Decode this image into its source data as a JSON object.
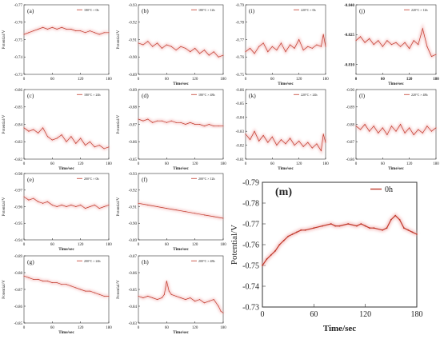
{
  "colors": {
    "line": "#c0392b",
    "glow": "#f3b5b5",
    "axis": "#333333"
  },
  "chart_data": [
    {
      "id": "a",
      "type": "line",
      "panel_label": "(a)",
      "legend": "180°C × 0h",
      "ylabel": "Potential/V",
      "xlabel": "",
      "xlim": [
        0,
        180
      ],
      "ylim": [
        -0.77,
        -0.73
      ],
      "xticks": [
        0,
        60,
        120,
        180
      ],
      "yticks": [
        -0.77,
        -0.76,
        -0.75,
        -0.74,
        -0.73
      ],
      "ytick_labels": [
        "-0.77",
        "-0.76",
        "-0.75",
        "-0.74",
        "-0.73"
      ],
      "x": [
        0,
        10,
        20,
        30,
        40,
        50,
        60,
        70,
        80,
        90,
        100,
        110,
        120,
        130,
        140,
        150,
        160,
        170,
        180
      ],
      "y": [
        -0.753,
        -0.754,
        -0.755,
        -0.756,
        -0.757,
        -0.756,
        -0.757,
        -0.756,
        -0.757,
        -0.756,
        -0.756,
        -0.755,
        -0.755,
        -0.754,
        -0.755,
        -0.754,
        -0.753,
        -0.754,
        -0.754
      ]
    },
    {
      "id": "b",
      "type": "line",
      "panel_label": "(b)",
      "legend": "180°C × 12h",
      "ylabel": "Potential/V",
      "xlabel": "Time/sec",
      "xlim": [
        0,
        180
      ],
      "ylim": [
        -0.93,
        -0.89
      ],
      "xticks": [
        0,
        60,
        120,
        180
      ],
      "yticks": [
        -0.93,
        -0.92,
        -0.91,
        -0.9,
        -0.89
      ],
      "ytick_labels": [
        "-0.93",
        "-0.92",
        "-0.91",
        "-0.90",
        "-0.89"
      ],
      "x": [
        0,
        10,
        20,
        30,
        40,
        50,
        60,
        70,
        80,
        90,
        100,
        110,
        120,
        130,
        140,
        150,
        160,
        170,
        180
      ],
      "y": [
        -0.908,
        -0.907,
        -0.909,
        -0.906,
        -0.908,
        -0.905,
        -0.907,
        -0.906,
        -0.904,
        -0.906,
        -0.905,
        -0.903,
        -0.905,
        -0.902,
        -0.904,
        -0.901,
        -0.903,
        -0.9,
        -0.901
      ]
    },
    {
      "id": "c",
      "type": "line",
      "panel_label": "(c)",
      "legend": "180°C × 24h",
      "ylabel": "Potential/V",
      "xlabel": "Time/sec",
      "xlim": [
        0,
        180
      ],
      "ylim": [
        -0.86,
        -0.82
      ],
      "xticks": [
        0,
        60,
        120,
        180
      ],
      "yticks": [
        -0.86,
        -0.85,
        -0.84,
        -0.83,
        -0.82
      ],
      "ytick_labels": [
        "-0.86",
        "-0.85",
        "-0.84",
        "-0.83",
        "-0.82"
      ],
      "x": [
        0,
        10,
        20,
        30,
        40,
        50,
        60,
        70,
        80,
        90,
        100,
        110,
        120,
        130,
        140,
        150,
        160,
        170,
        180
      ],
      "y": [
        -0.838,
        -0.836,
        -0.837,
        -0.835,
        -0.838,
        -0.833,
        -0.831,
        -0.832,
        -0.834,
        -0.83,
        -0.833,
        -0.829,
        -0.832,
        -0.828,
        -0.83,
        -0.827,
        -0.828,
        -0.826,
        -0.827
      ]
    },
    {
      "id": "d",
      "type": "line",
      "panel_label": "(d)",
      "legend": "180°C × 48h",
      "ylabel": "Potential/V",
      "xlabel": "Time/sec",
      "xlim": [
        0,
        180
      ],
      "ylim": [
        -0.89,
        -0.85
      ],
      "xticks": [
        0,
        60,
        120,
        180
      ],
      "yticks": [
        -0.89,
        -0.88,
        -0.87,
        -0.86,
        -0.85
      ],
      "ytick_labels": [
        "-0.89",
        "-0.88",
        "-0.87",
        "-0.86",
        "-0.85"
      ],
      "x": [
        0,
        10,
        20,
        30,
        40,
        50,
        60,
        70,
        80,
        90,
        100,
        110,
        120,
        130,
        140,
        150,
        160,
        170,
        180
      ],
      "y": [
        -0.873,
        -0.872,
        -0.873,
        -0.871,
        -0.872,
        -0.872,
        -0.871,
        -0.872,
        -0.871,
        -0.871,
        -0.87,
        -0.871,
        -0.87,
        -0.87,
        -0.869,
        -0.87,
        -0.869,
        -0.869,
        -0.869
      ]
    },
    {
      "id": "e",
      "type": "line",
      "panel_label": "(e)",
      "legend": "200°C × 0h",
      "ylabel": "Potential/V",
      "xlabel": "Time/sec",
      "xlim": [
        0,
        180
      ],
      "ylim": [
        -0.98,
        -0.94
      ],
      "xticks": [
        0,
        60,
        120,
        180
      ],
      "yticks": [
        -0.98,
        -0.97,
        -0.96,
        -0.95,
        -0.94
      ],
      "ytick_labels": [
        "-0.98",
        "-0.97",
        "-0.96",
        "-0.95",
        "-0.94"
      ],
      "x": [
        0,
        10,
        20,
        30,
        40,
        50,
        60,
        70,
        80,
        90,
        100,
        110,
        120,
        130,
        140,
        150,
        160,
        170,
        180
      ],
      "y": [
        -0.966,
        -0.964,
        -0.965,
        -0.963,
        -0.962,
        -0.963,
        -0.961,
        -0.96,
        -0.961,
        -0.96,
        -0.961,
        -0.96,
        -0.961,
        -0.959,
        -0.96,
        -0.961,
        -0.959,
        -0.96,
        -0.961
      ]
    },
    {
      "id": "f",
      "type": "line",
      "panel_label": "(f)",
      "legend": "200°C × 12h",
      "ylabel": "Potential/V",
      "xlabel": "Time/sec",
      "xlim": [
        0,
        180
      ],
      "ylim": [
        -0.93,
        -0.89
      ],
      "xticks": [
        0,
        60,
        120,
        180
      ],
      "yticks": [
        -0.93,
        -0.92,
        -0.91,
        -0.9,
        -0.89
      ],
      "ytick_labels": [
        "-0.93",
        "-0.92",
        "-0.91",
        "-0.90",
        "-0.89"
      ],
      "x": [
        0,
        20,
        40,
        60,
        80,
        100,
        120,
        140,
        160,
        180
      ],
      "y": [
        -0.912,
        -0.911,
        -0.91,
        -0.909,
        -0.908,
        -0.907,
        -0.906,
        -0.905,
        -0.904,
        -0.903
      ]
    },
    {
      "id": "g",
      "type": "line",
      "panel_label": "(g)",
      "legend": "200°C × 24h",
      "ylabel": "Potential/V",
      "xlabel": "Time/sec",
      "xlim": [
        0,
        180
      ],
      "ylim": [
        -0.89,
        -0.85
      ],
      "xticks": [
        0,
        60,
        120,
        180
      ],
      "yticks": [
        -0.89,
        -0.88,
        -0.87,
        -0.86,
        -0.85
      ],
      "ytick_labels": [
        "-0.89",
        "-0.88",
        "-0.87",
        "-0.86",
        "-0.85"
      ],
      "x": [
        0,
        10,
        20,
        30,
        40,
        50,
        60,
        70,
        80,
        90,
        100,
        110,
        120,
        130,
        140,
        150,
        160,
        170,
        180
      ],
      "y": [
        -0.878,
        -0.877,
        -0.876,
        -0.876,
        -0.875,
        -0.875,
        -0.874,
        -0.874,
        -0.873,
        -0.873,
        -0.872,
        -0.871,
        -0.87,
        -0.869,
        -0.869,
        -0.868,
        -0.867,
        -0.866,
        -0.866
      ]
    },
    {
      "id": "h",
      "type": "line",
      "panel_label": "(h)",
      "legend": "200°C × 48h",
      "ylabel": "Potential/V",
      "xlabel": "Time/sec",
      "xlim": [
        0,
        180
      ],
      "ylim": [
        -0.87,
        -0.83
      ],
      "xticks": [
        0,
        60,
        120,
        180
      ],
      "yticks": [
        -0.87,
        -0.86,
        -0.85,
        -0.84,
        -0.83
      ],
      "ytick_labels": [
        "-0.87",
        "-0.86",
        "-0.85",
        "-0.84",
        "-0.83"
      ],
      "x": [
        0,
        10,
        20,
        30,
        40,
        50,
        55,
        60,
        65,
        70,
        80,
        90,
        100,
        110,
        120,
        130,
        140,
        150,
        160,
        170,
        175,
        180
      ],
      "y": [
        -0.846,
        -0.845,
        -0.846,
        -0.845,
        -0.844,
        -0.845,
        -0.847,
        -0.855,
        -0.849,
        -0.847,
        -0.846,
        -0.845,
        -0.844,
        -0.845,
        -0.843,
        -0.844,
        -0.842,
        -0.843,
        -0.844,
        -0.84,
        -0.837,
        -0.836
      ]
    },
    {
      "id": "i",
      "type": "line",
      "panel_label": "(i)",
      "legend": "220°C × 0h",
      "ylabel": "",
      "xlabel": "Time/sec",
      "xlim": [
        0,
        180
      ],
      "ylim": [
        -0.79,
        -0.75
      ],
      "xticks": [
        0,
        60,
        120,
        180
      ],
      "yticks": [
        -0.79,
        -0.78,
        -0.77,
        -0.76,
        -0.75
      ],
      "ytick_labels": [
        "-0.79",
        "-0.78",
        "-0.77",
        "-0.76",
        "-0.75"
      ],
      "x": [
        0,
        10,
        20,
        30,
        40,
        50,
        60,
        70,
        80,
        90,
        100,
        110,
        120,
        130,
        140,
        150,
        160,
        170,
        175,
        180
      ],
      "y": [
        -0.763,
        -0.765,
        -0.762,
        -0.766,
        -0.768,
        -0.763,
        -0.766,
        -0.764,
        -0.768,
        -0.763,
        -0.767,
        -0.765,
        -0.77,
        -0.764,
        -0.766,
        -0.765,
        -0.767,
        -0.766,
        -0.773,
        -0.766
      ]
    },
    {
      "id": "j",
      "type": "line",
      "panel_label": "(j)",
      "legend": "220°C × 12h",
      "ylabel": "",
      "xlabel": "Time/sec",
      "xlim": [
        0,
        180
      ],
      "ylim": [
        -0.84,
        -0.805
      ],
      "xticks": [
        0,
        60,
        120,
        180
      ],
      "yticks": [
        -0.84,
        -0.825,
        -0.81
      ],
      "ytick_labels": [
        "-0.840",
        "-0.825",
        "-0.810"
      ],
      "x": [
        0,
        10,
        20,
        30,
        40,
        50,
        60,
        70,
        80,
        90,
        100,
        110,
        120,
        130,
        140,
        150,
        160,
        170,
        180
      ],
      "y": [
        -0.822,
        -0.824,
        -0.821,
        -0.823,
        -0.82,
        -0.822,
        -0.819,
        -0.822,
        -0.82,
        -0.821,
        -0.819,
        -0.821,
        -0.818,
        -0.822,
        -0.82,
        -0.828,
        -0.819,
        -0.814,
        -0.815
      ]
    },
    {
      "id": "k",
      "type": "line",
      "panel_label": "(k)",
      "legend": "220°C × 24h",
      "ylabel": "",
      "xlabel": "Time/sec",
      "xlim": [
        0,
        180
      ],
      "ylim": [
        -0.86,
        -0.81
      ],
      "xticks": [
        0,
        60,
        120,
        180
      ],
      "yticks": [
        -0.86,
        -0.85,
        -0.84,
        -0.83,
        -0.82,
        -0.81
      ],
      "ytick_labels": [
        "-0.86",
        "-0.85",
        "-0.84",
        "-0.83",
        "-0.82",
        "-0.81"
      ],
      "x": [
        0,
        10,
        20,
        30,
        40,
        50,
        60,
        70,
        80,
        90,
        100,
        110,
        120,
        130,
        140,
        150,
        160,
        170,
        175,
        180
      ],
      "y": [
        -0.828,
        -0.824,
        -0.83,
        -0.823,
        -0.827,
        -0.822,
        -0.826,
        -0.82,
        -0.824,
        -0.821,
        -0.825,
        -0.82,
        -0.823,
        -0.819,
        -0.822,
        -0.818,
        -0.821,
        -0.816,
        -0.828,
        -0.822
      ]
    },
    {
      "id": "l",
      "type": "line",
      "panel_label": "(l)",
      "legend": "220°C × 48h",
      "ylabel": "",
      "xlabel": "Time/sec",
      "xlim": [
        0,
        180
      ],
      "ylim": [
        -0.9,
        -0.86
      ],
      "xticks": [
        0,
        60,
        120,
        180
      ],
      "yticks": [
        -0.9,
        -0.89,
        -0.88,
        -0.87,
        -0.86
      ],
      "ytick_labels": [
        "-0.90",
        "-0.89",
        "-0.88",
        "-0.87",
        "-0.86"
      ],
      "x": [
        0,
        10,
        20,
        30,
        40,
        50,
        60,
        70,
        80,
        90,
        100,
        110,
        120,
        130,
        140,
        150,
        160,
        170,
        180
      ],
      "y": [
        -0.879,
        -0.877,
        -0.88,
        -0.876,
        -0.879,
        -0.875,
        -0.878,
        -0.874,
        -0.879,
        -0.876,
        -0.88,
        -0.875,
        -0.878,
        -0.874,
        -0.877,
        -0.875,
        -0.879,
        -0.876,
        -0.878
      ]
    },
    {
      "id": "m",
      "type": "line",
      "panel_label": "(m)",
      "legend": "0h",
      "ylabel": "Potential/V",
      "xlabel": "Time/sec",
      "xlim": [
        0,
        180
      ],
      "ylim": [
        -0.79,
        -0.73
      ],
      "xticks": [
        0,
        60,
        120,
        180
      ],
      "yticks": [
        -0.79,
        -0.78,
        -0.77,
        -0.76,
        -0.75,
        -0.74,
        -0.73
      ],
      "ytick_labels": [
        "-0.79",
        "-0.78",
        "-0.77",
        "-0.76",
        "-0.75",
        "-0.74",
        "-0.73"
      ],
      "x": [
        0,
        5,
        10,
        15,
        20,
        25,
        30,
        35,
        40,
        45,
        50,
        60,
        70,
        80,
        85,
        90,
        100,
        110,
        115,
        120,
        125,
        130,
        140,
        145,
        150,
        155,
        160,
        165,
        170,
        175,
        180
      ],
      "y": [
        -0.75,
        -0.753,
        -0.755,
        -0.757,
        -0.76,
        -0.762,
        -0.764,
        -0.765,
        -0.766,
        -0.767,
        -0.767,
        -0.768,
        -0.769,
        -0.77,
        -0.769,
        -0.769,
        -0.77,
        -0.769,
        -0.77,
        -0.769,
        -0.768,
        -0.768,
        -0.767,
        -0.768,
        -0.772,
        -0.774,
        -0.772,
        -0.768,
        -0.767,
        -0.766,
        -0.765
      ]
    }
  ]
}
